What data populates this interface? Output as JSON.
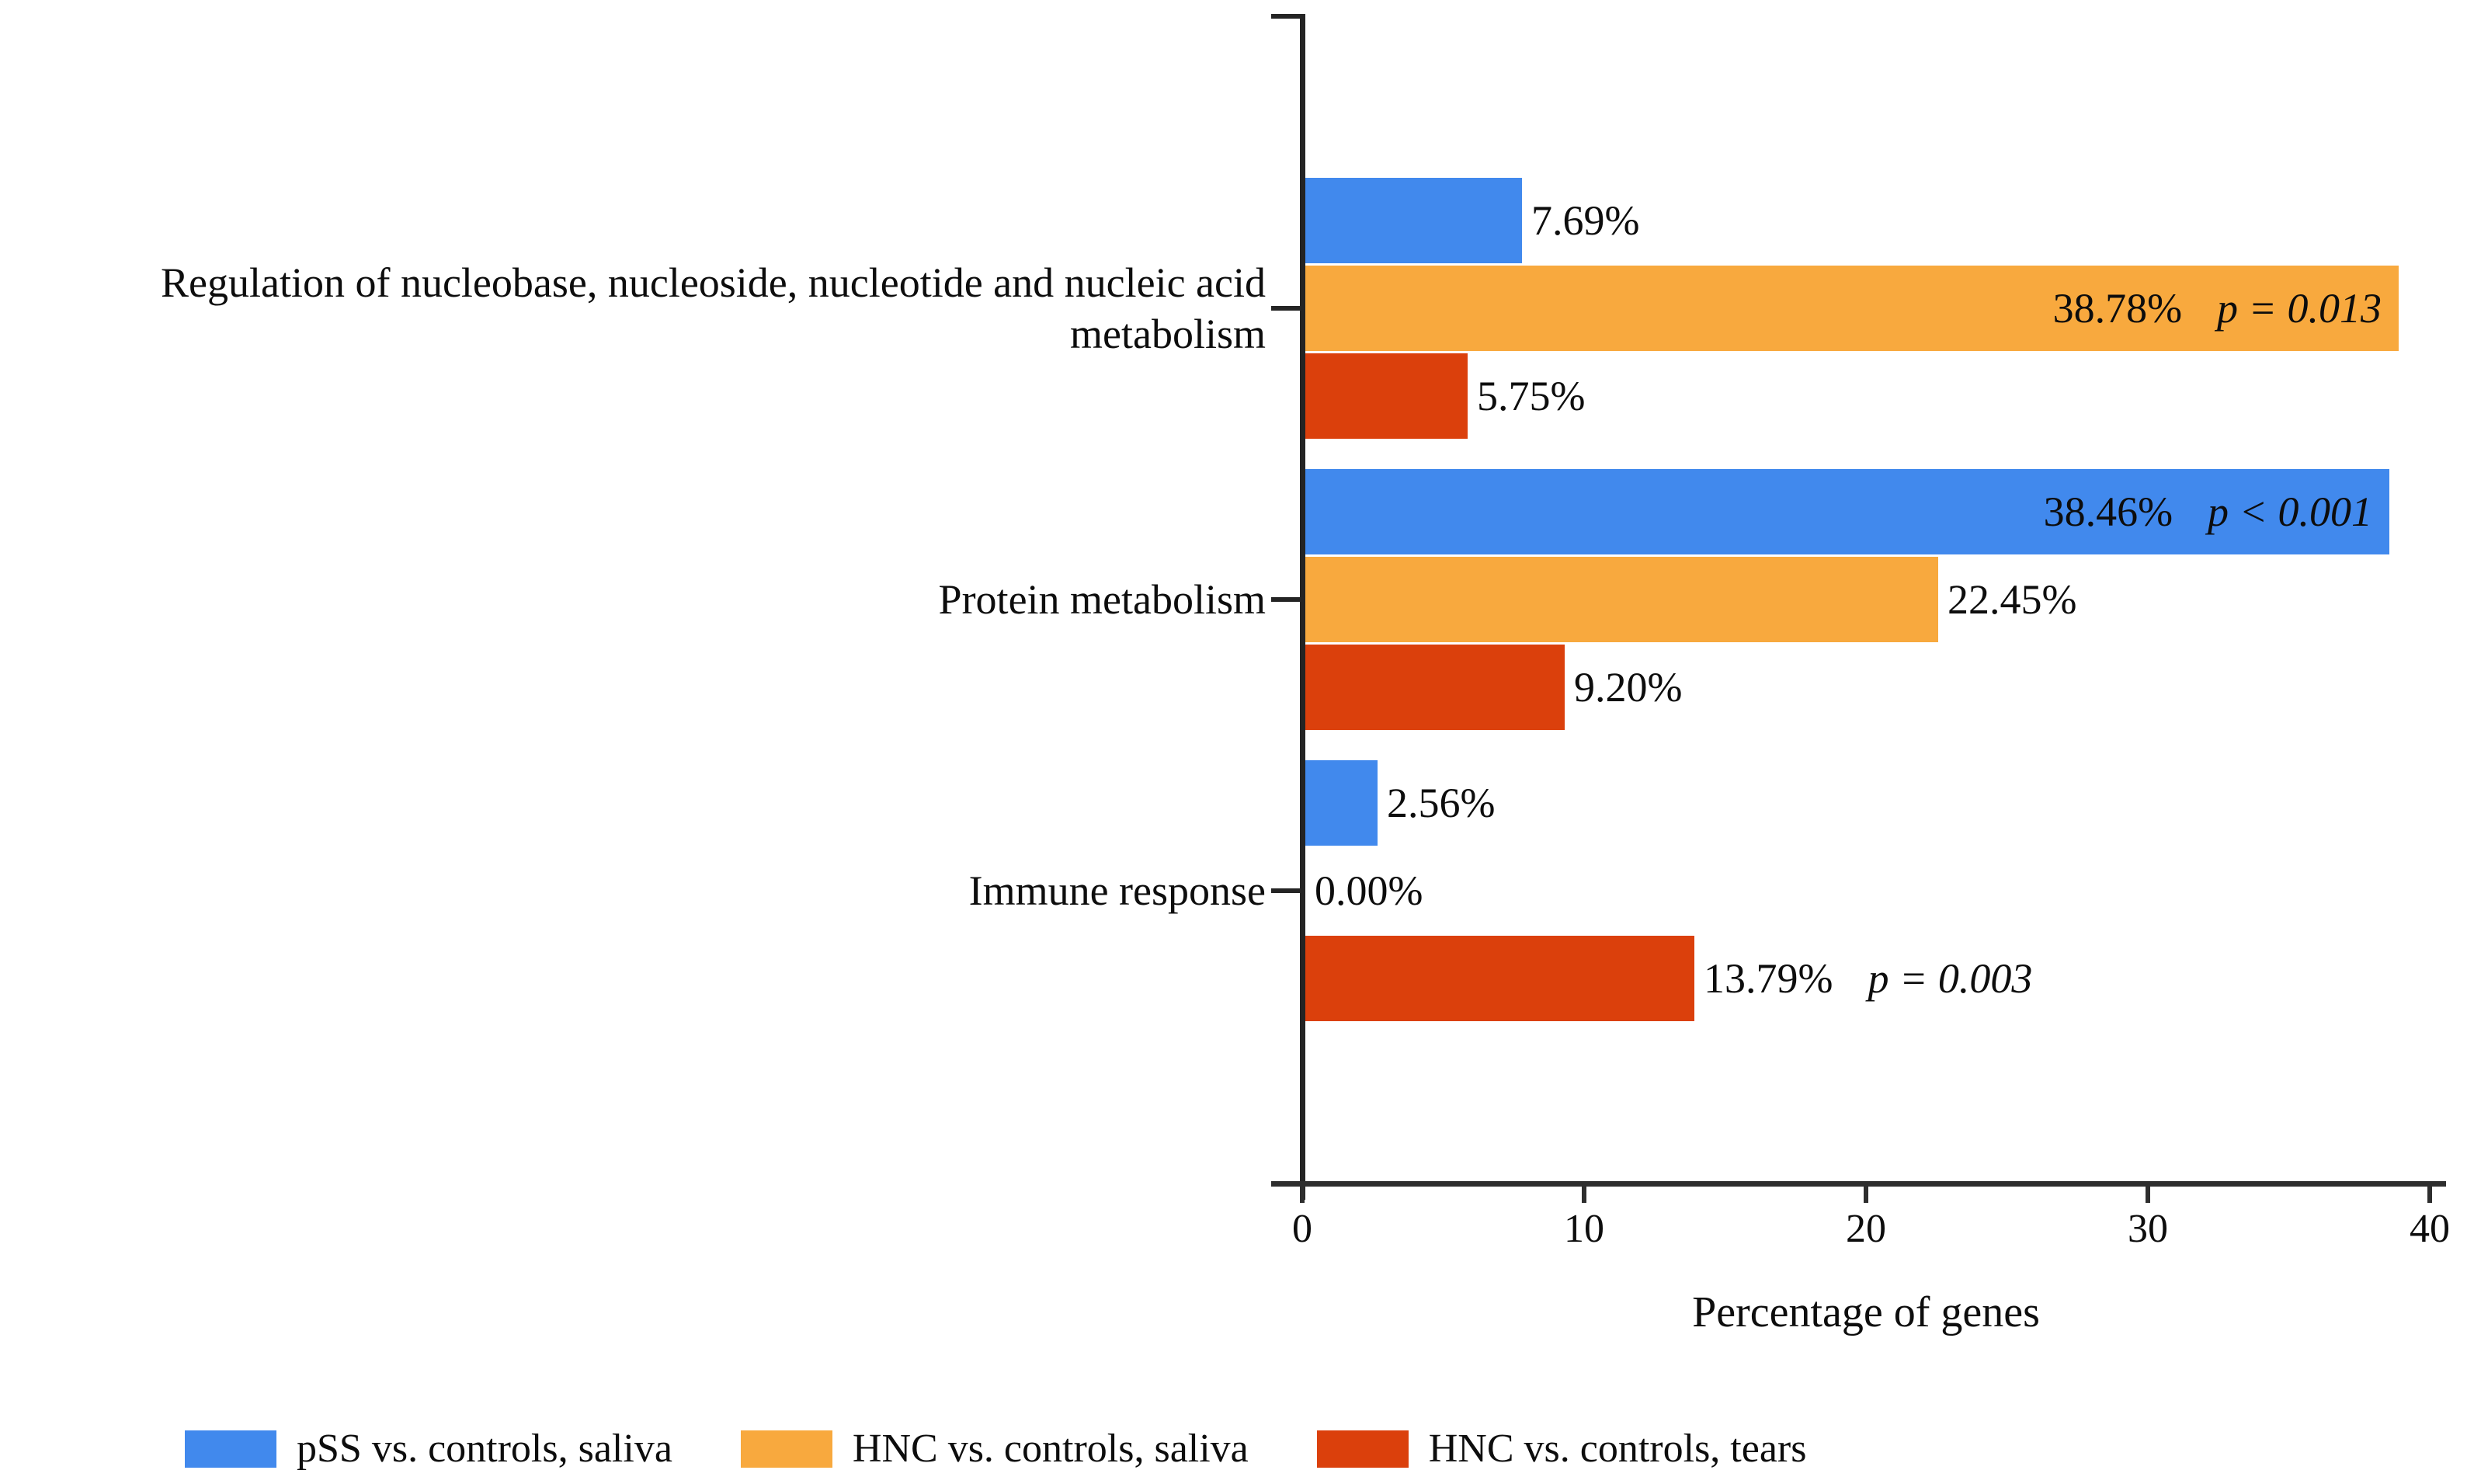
{
  "chart_data": {
    "type": "bar",
    "orientation": "horizontal",
    "title": "",
    "xlabel": "Percentage of genes",
    "ylabel": "",
    "xlim": [
      0,
      40
    ],
    "xticks": [
      "0",
      "10",
      "20",
      "30",
      "40"
    ],
    "grid": false,
    "legend_position": "bottom",
    "categories": [
      "Regulation of nucleobase, nucleoside, nucleotide and nucleic acid\nmetabolism",
      "Protein metabolism",
      "Immune response"
    ],
    "series": [
      {
        "name": "pSS vs. controls, saliva",
        "color": "#4189ED",
        "values": [
          7.69,
          38.46,
          2.56
        ],
        "labels": [
          "7.69%",
          "38.46%",
          "2.56%"
        ],
        "p_values": [
          null,
          "p < 0.001",
          null
        ]
      },
      {
        "name": "HNC vs. controls, saliva",
        "color": "#F8A93E",
        "values": [
          38.78,
          22.45,
          0.0
        ],
        "labels": [
          "38.78%",
          "22.45%",
          "0.00%"
        ],
        "p_values": [
          "p = 0.013",
          null,
          null
        ]
      },
      {
        "name": "HNC vs. controls, tears",
        "color": "#DB400C",
        "values": [
          5.75,
          9.2,
          13.79
        ],
        "labels": [
          "5.75%",
          "9.20%",
          "13.79%"
        ],
        "p_values": [
          null,
          null,
          "p = 0.003"
        ]
      }
    ],
    "axis_color": "#2e2e2e",
    "text_color": "#0d0d0d"
  }
}
